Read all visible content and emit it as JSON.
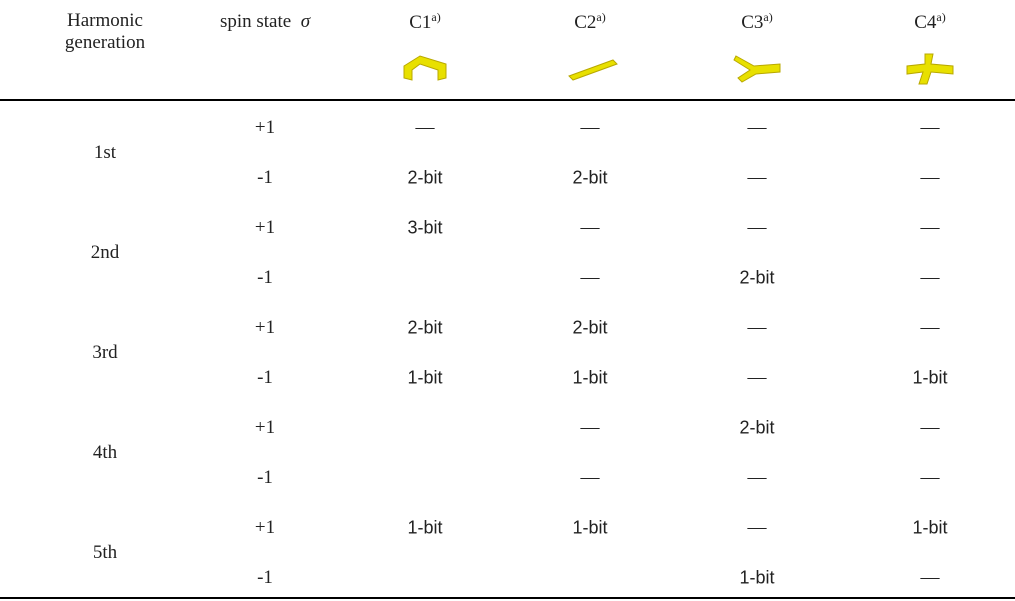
{
  "header": {
    "columns": [
      {
        "label": "Harmonic generation"
      },
      {
        "label": "spin state",
        "symbol": "σ"
      },
      {
        "label": "C1",
        "note": "a)"
      },
      {
        "label": "C2",
        "note": "a)"
      },
      {
        "label": "C3",
        "note": "a)"
      },
      {
        "label": "C4",
        "note": "a)"
      }
    ]
  },
  "table": {
    "groups": [
      "1st",
      "2nd",
      "3rd",
      "4th",
      "5th"
    ],
    "rows": [
      [
        "+1",
        "—",
        "—",
        "—",
        "—"
      ],
      [
        "-1",
        "2-bit",
        "2-bit",
        "—",
        "—"
      ],
      [
        "+1",
        "3-bit",
        "—",
        "—",
        "—"
      ],
      [
        "-1",
        null,
        "—",
        "2-bit",
        "—"
      ],
      [
        "+1",
        "2-bit",
        "2-bit",
        "—",
        "—"
      ],
      [
        "-1",
        "1-bit",
        "1-bit",
        "—",
        "1-bit"
      ],
      [
        "+1",
        null,
        "—",
        "2-bit",
        "—"
      ],
      [
        "-1",
        null,
        "—",
        "—",
        "—"
      ],
      [
        "+1",
        "1-bit",
        "1-bit",
        "—",
        "1-bit"
      ],
      [
        "-1",
        null,
        null,
        "1-bit",
        "—"
      ]
    ]
  }
}
